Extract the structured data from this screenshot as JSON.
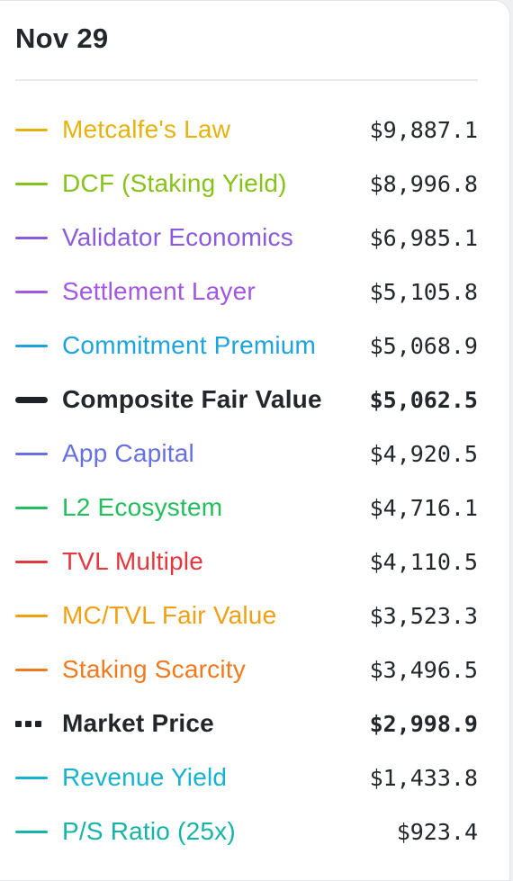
{
  "header": {
    "date": "Nov 29"
  },
  "legend": [
    {
      "label": "Metcalfe's Law",
      "value": "$9,887.1",
      "color": "#e5b30f",
      "style": "line"
    },
    {
      "label": "DCF (Staking Yield)",
      "value": "$8,996.8",
      "color": "#86c21a",
      "style": "line"
    },
    {
      "label": "Validator Economics",
      "value": "$6,985.1",
      "color": "#8b5bdc",
      "style": "line"
    },
    {
      "label": "Settlement Layer",
      "value": "$5,105.8",
      "color": "#a259e0",
      "style": "line"
    },
    {
      "label": "Commitment Premium",
      "value": "$5,068.9",
      "color": "#1ea4dc",
      "style": "line"
    },
    {
      "label": "Composite Fair Value",
      "value": "$5,062.5",
      "color": "#1f2227",
      "style": "bold"
    },
    {
      "label": "App Capital",
      "value": "$4,920.5",
      "color": "#6670df",
      "style": "line"
    },
    {
      "label": "L2 Ecosystem",
      "value": "$4,716.1",
      "color": "#23bd5e",
      "style": "line"
    },
    {
      "label": "TVL Multiple",
      "value": "$4,110.5",
      "color": "#e2383e",
      "style": "line"
    },
    {
      "label": "MC/TVL Fair Value",
      "value": "$3,523.3",
      "color": "#f0a113",
      "style": "line"
    },
    {
      "label": "Staking Scarcity",
      "value": "$3,496.5",
      "color": "#f07a1f",
      "style": "line"
    },
    {
      "label": "Market Price",
      "value": "$2,998.9",
      "color": "#1f2227",
      "style": "dotted"
    },
    {
      "label": "Revenue Yield",
      "value": "$1,433.8",
      "color": "#16b3cf",
      "style": "line"
    },
    {
      "label": "P/S Ratio (25x)",
      "value": "$923.4",
      "color": "#16b4a6",
      "style": "line"
    }
  ]
}
